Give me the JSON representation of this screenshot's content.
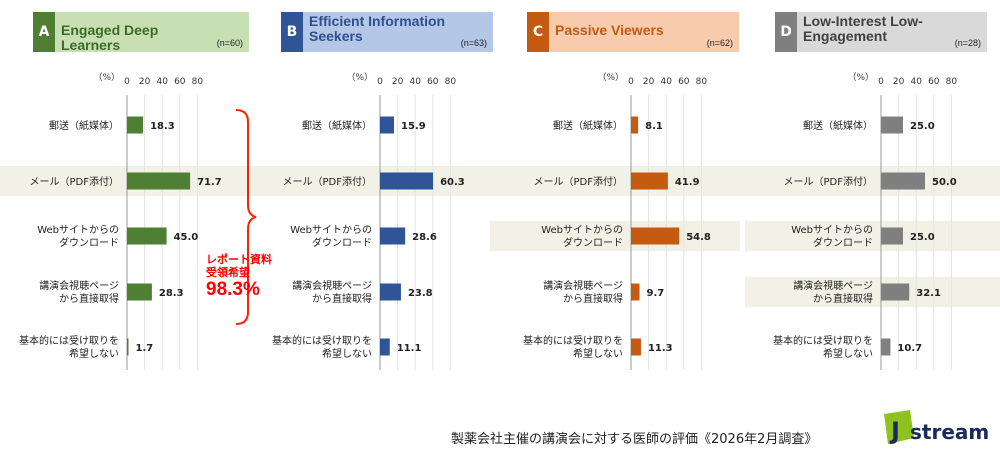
{
  "unit_label": "（%）",
  "categories": [
    [
      "郵送（紙媒体）"
    ],
    [
      "メール（PDF添付）"
    ],
    [
      "Webサイトからの",
      "ダウンロード"
    ],
    [
      "講演会視聴ページ",
      "から直接取得"
    ],
    [
      "基本的には受け取りを",
      "希望しない"
    ]
  ],
  "axis_ticks": [
    0,
    20,
    40,
    60,
    80
  ],
  "panels": [
    {
      "letter": "A",
      "title": "Engaged Deep Learners",
      "n": "(n=60)",
      "color": "#4e7f32",
      "header_bg": "#c8dfb4",
      "title_color": "#3c6d28"
    },
    {
      "letter": "B",
      "title": "Efficient Information Seekers",
      "n": "(n=63)",
      "color": "#2f5597",
      "header_bg": "#b4c7e7",
      "title_color": "#2f4f8f"
    },
    {
      "letter": "C",
      "title": "Passive Viewers",
      "n": "(n=62)",
      "color": "#c55a11",
      "header_bg": "#f8cbad",
      "title_color": "#c55a11"
    },
    {
      "letter": "D",
      "title": "Low-Interest Low-Engagement",
      "n": "(n=28)",
      "color": "#7f7f7f",
      "header_bg": "#d9d9d9",
      "title_color": "#404040"
    }
  ],
  "annotation": {
    "line1": "レポート資料",
    "line2": "受領希望",
    "value": "98.3%",
    "color": "#ff0000"
  },
  "footer": {
    "title": "製薬会社主催の講演会に対する医師の評価《2026年2月調査》"
  },
  "logo": {
    "text": "stream",
    "initial": "J"
  },
  "chart_data": [
    {
      "type": "bar",
      "orientation": "horizontal",
      "panel": "A Engaged Deep Learners (n=60)",
      "categories": [
        "郵送（紙媒体）",
        "メール（PDF添付）",
        "Webサイトからのダウンロード",
        "講演会視聴ページから直接取得",
        "基本的には受け取りを希望しない"
      ],
      "values": [
        18.3,
        71.7,
        45.0,
        28.3,
        1.7
      ],
      "xlim": [
        0,
        80
      ],
      "highlight": [
        1
      ]
    },
    {
      "type": "bar",
      "orientation": "horizontal",
      "panel": "B Efficient Information Seekers (n=63)",
      "categories": [
        "郵送（紙媒体）",
        "メール（PDF添付）",
        "Webサイトからのダウンロード",
        "講演会視聴ページから直接取得",
        "基本的には受け取りを希望しない"
      ],
      "values": [
        15.9,
        60.3,
        28.6,
        23.8,
        11.1
      ],
      "xlim": [
        0,
        80
      ],
      "highlight": [
        1
      ]
    },
    {
      "type": "bar",
      "orientation": "horizontal",
      "panel": "C Passive Viewers (n=62)",
      "categories": [
        "郵送（紙媒体）",
        "メール（PDF添付）",
        "Webサイトからのダウンロード",
        "講演会視聴ページから直接取得",
        "基本的には受け取りを希望しない"
      ],
      "values": [
        8.1,
        41.9,
        54.8,
        9.7,
        11.3
      ],
      "xlim": [
        0,
        80
      ],
      "highlight": [
        1,
        2
      ]
    },
    {
      "type": "bar",
      "orientation": "horizontal",
      "panel": "D Low-Interest Low-Engagement (n=28)",
      "categories": [
        "郵送（紙媒体）",
        "メール（PDF添付）",
        "Webサイトからのダウンロード",
        "講演会視聴ページから直接取得",
        "基本的には受け取りを希望しない"
      ],
      "values": [
        25.0,
        50.0,
        25.0,
        32.1,
        10.7
      ],
      "xlim": [
        0,
        80
      ],
      "highlight": [
        1,
        3
      ]
    }
  ]
}
